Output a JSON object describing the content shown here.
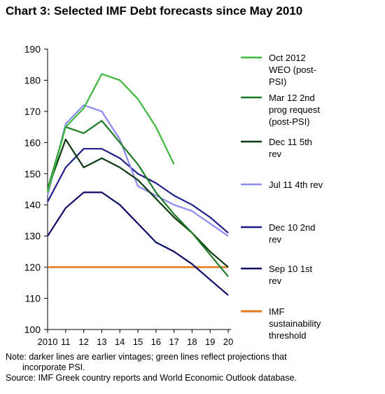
{
  "title": "Chart 3: Selected IMF Debt forecasts since May 2010",
  "footnote": {
    "line1": "Note: darker lines are earlier vintages; green lines reflect projections that",
    "line2": "incorporate PSI.",
    "line3": "Source: IMF Greek country reports and World Economic Outlook database."
  },
  "chart_data": {
    "type": "line",
    "title": "Chart 3: Selected IMF Debt forecasts since May 2010",
    "xlabel": "",
    "ylabel": "",
    "x": [
      2010,
      2011,
      2012,
      2013,
      2014,
      2015,
      2016,
      2017,
      2018,
      2019,
      2020
    ],
    "x_tick_labels": [
      "2010",
      "11",
      "12",
      "13",
      "14",
      "15",
      "16",
      "17",
      "18",
      "19",
      "20"
    ],
    "xlim": [
      2010,
      2020
    ],
    "ylim": [
      100,
      190
    ],
    "y_ticks": [
      100,
      110,
      120,
      130,
      140,
      150,
      160,
      170,
      180,
      190
    ],
    "grid": false,
    "legend_position": "right",
    "series": [
      {
        "name": "Oct 2012 WEO (post-PSI)",
        "color": "#3db83d",
        "x": [
          2010,
          2011,
          2012,
          2013,
          2014,
          2015,
          2016,
          2017
        ],
        "values": [
          144,
          165,
          171,
          182,
          180,
          174,
          165,
          153
        ]
      },
      {
        "name": "Mar 12 2nd prog request (post-PSI)",
        "color": "#1e7a26",
        "x": [
          2010,
          2011,
          2012,
          2013,
          2014,
          2015,
          2016,
          2017,
          2018,
          2019,
          2020
        ],
        "values": [
          145,
          165,
          163,
          167,
          160,
          153,
          144,
          137,
          131,
          124,
          117
        ]
      },
      {
        "name": "Dec 11 5th rev",
        "color": "#0d3b12",
        "x": [
          2010,
          2011,
          2012,
          2013,
          2014,
          2015,
          2016,
          2017,
          2018,
          2019,
          2020
        ],
        "values": [
          145,
          161,
          152,
          155,
          152,
          148,
          142,
          136,
          131,
          125,
          120
        ]
      },
      {
        "name": "Jul 11 4th rev",
        "color": "#8b8bf0",
        "x": [
          2010,
          2011,
          2012,
          2013,
          2014,
          2015,
          2016,
          2017,
          2018,
          2019,
          2020
        ],
        "values": [
          143,
          166,
          172,
          170,
          161,
          146,
          143,
          140,
          138,
          134,
          130
        ]
      },
      {
        "name": "Dec 10 2nd rev",
        "color": "#1f1f8a",
        "x": [
          2010,
          2011,
          2012,
          2013,
          2014,
          2015,
          2016,
          2017,
          2018,
          2019,
          2020
        ],
        "values": [
          141,
          152,
          158,
          158,
          155,
          150,
          147,
          143,
          140,
          136,
          131
        ]
      },
      {
        "name": "Sep 10 1st rev",
        "color": "#0b0b66",
        "x": [
          2010,
          2011,
          2012,
          2013,
          2014,
          2015,
          2016,
          2017,
          2018,
          2019,
          2020
        ],
        "values": [
          130,
          139,
          144,
          144,
          140,
          134,
          128,
          125,
          121,
          116,
          111
        ]
      },
      {
        "name": "IMF sustainability threshold",
        "color": "#e07a1f",
        "x": [
          2010,
          2011,
          2012,
          2013,
          2014,
          2015,
          2016,
          2017,
          2018,
          2019,
          2020
        ],
        "values": [
          120,
          120,
          120,
          120,
          120,
          120,
          120,
          120,
          120,
          120,
          120
        ]
      }
    ],
    "legend": [
      {
        "lines": [
          "Oct 2012",
          "WEO (post-",
          "PSI)"
        ]
      },
      {
        "lines": [
          "Mar 12 2nd",
          "prog request",
          "(post-PSI)"
        ]
      },
      {
        "lines": [
          "Dec 11 5th",
          "rev"
        ]
      },
      {
        "lines": [
          "Jul 11 4th rev"
        ]
      },
      {
        "lines": [
          "Dec 10 2nd",
          "rev"
        ]
      },
      {
        "lines": [
          "Sep 10 1st",
          "rev"
        ]
      },
      {
        "lines": [
          "IMF",
          "sustainability",
          "threshold"
        ]
      }
    ]
  }
}
